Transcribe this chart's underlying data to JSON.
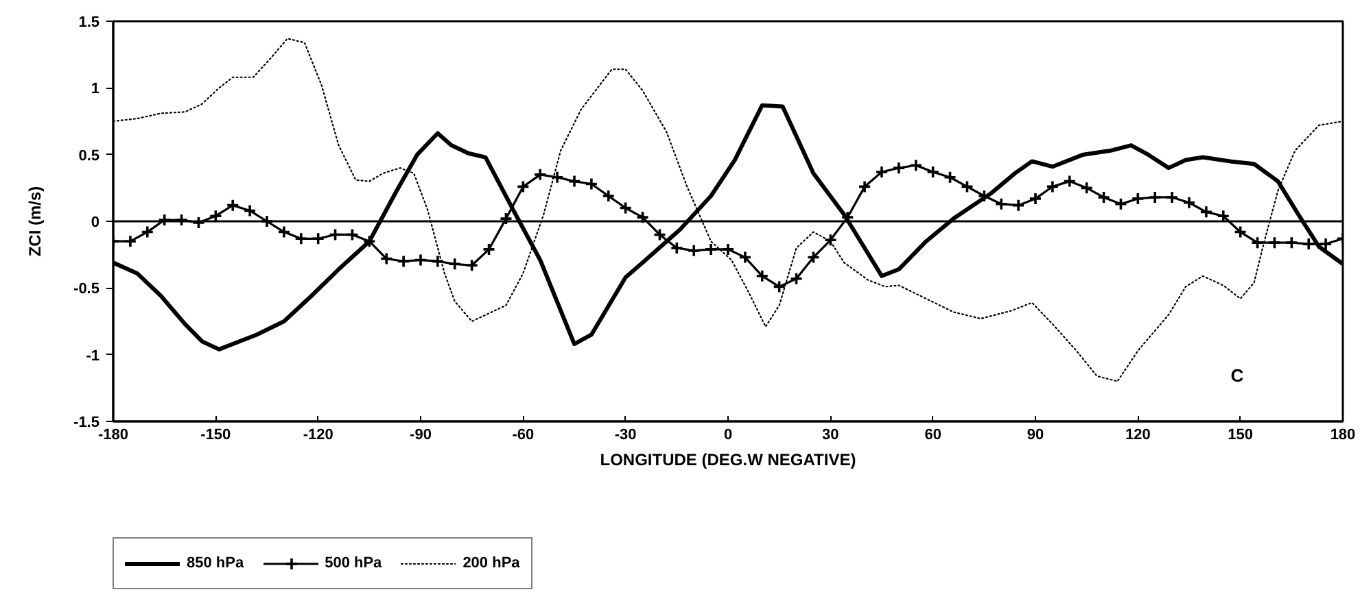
{
  "chart_data": {
    "type": "line",
    "xlabel": "LONGITUDE (DEG.W NEGATIVE)",
    "ylabel": "ZCI (m/s)",
    "xlim": [
      -180,
      180
    ],
    "ylim": [
      -1.5,
      1.5
    ],
    "xticks": [
      -180,
      -150,
      -120,
      -90,
      -60,
      -30,
      0,
      30,
      60,
      90,
      120,
      150,
      180
    ],
    "yticks": [
      -1.5,
      -1,
      -0.5,
      0,
      0.5,
      1,
      1.5
    ],
    "legend": "bottom left",
    "ref_lines": [
      {
        "axis": "y",
        "value": 0,
        "color": "#000000"
      }
    ],
    "annotations": [
      "C"
    ],
    "series": [
      {
        "name": "850 hPa",
        "color": "#000000",
        "line_style": "solid",
        "marker": "none",
        "x": [
          -180,
          -173,
          -166,
          -159,
          -154,
          -149,
          -138,
          -130,
          -122,
          -114,
          -105,
          -97,
          -91,
          -85,
          -81,
          -76,
          -71,
          -63,
          -55,
          -45,
          -40,
          -30,
          -25,
          -14,
          -5,
          2,
          10,
          16,
          25,
          34,
          45,
          50,
          58,
          66,
          77,
          84,
          89,
          95,
          104,
          112,
          118,
          123,
          129,
          134,
          139,
          147,
          154,
          161,
          167,
          173,
          180
        ],
        "values": [
          -0.31,
          -0.39,
          -0.56,
          -0.77,
          -0.9,
          -0.96,
          -0.85,
          -0.75,
          -0.56,
          -0.36,
          -0.15,
          0.23,
          0.5,
          0.66,
          0.57,
          0.51,
          0.48,
          0.09,
          -0.29,
          -0.92,
          -0.85,
          -0.42,
          -0.31,
          -0.06,
          0.19,
          0.46,
          0.87,
          0.86,
          0.36,
          0.05,
          -0.41,
          -0.36,
          -0.15,
          0.02,
          0.21,
          0.36,
          0.45,
          0.41,
          0.5,
          0.53,
          0.57,
          0.5,
          0.4,
          0.46,
          0.48,
          0.45,
          0.43,
          0.3,
          0.05,
          -0.19,
          -0.32
        ]
      },
      {
        "name": "500 hPa",
        "color": "#000000",
        "line_style": "solid",
        "marker": "cross",
        "x": [
          -180,
          -175,
          -170,
          -165,
          -160,
          -155,
          -150,
          -145,
          -140,
          -135,
          -130,
          -125,
          -120,
          -115,
          -110,
          -105,
          -100,
          -95,
          -90,
          -85,
          -80,
          -75,
          -70,
          -65,
          -60,
          -55,
          -50,
          -45,
          -40,
          -35,
          -30,
          -25,
          -20,
          -15,
          -10,
          -5,
          0,
          5,
          10,
          15,
          20,
          25,
          30,
          35,
          40,
          45,
          50,
          55,
          60,
          65,
          70,
          75,
          80,
          85,
          90,
          95,
          100,
          105,
          110,
          115,
          120,
          125,
          130,
          135,
          140,
          145,
          150,
          155,
          160,
          165,
          170,
          175,
          180
        ],
        "values": [
          -0.15,
          -0.15,
          -0.08,
          0.01,
          0.01,
          -0.01,
          0.04,
          0.12,
          0.08,
          0.0,
          -0.08,
          -0.13,
          -0.13,
          -0.1,
          -0.1,
          -0.15,
          -0.28,
          -0.3,
          -0.29,
          -0.3,
          -0.32,
          -0.33,
          -0.21,
          0.02,
          0.26,
          0.35,
          0.33,
          0.3,
          0.28,
          0.19,
          0.1,
          0.03,
          -0.1,
          -0.2,
          -0.22,
          -0.21,
          -0.21,
          -0.27,
          -0.41,
          -0.49,
          -0.43,
          -0.27,
          -0.14,
          0.03,
          0.26,
          0.37,
          0.4,
          0.42,
          0.37,
          0.33,
          0.26,
          0.19,
          0.13,
          0.12,
          0.17,
          0.26,
          0.3,
          0.25,
          0.18,
          0.13,
          0.17,
          0.18,
          0.18,
          0.14,
          0.07,
          0.04,
          -0.08,
          -0.16,
          -0.16,
          -0.16,
          -0.17,
          -0.17,
          -0.13
        ]
      },
      {
        "name": "200 hPa",
        "color": "#000000",
        "line_style": "dotted",
        "marker": "none",
        "x": [
          -180,
          -173,
          -166,
          -159,
          -154,
          -149,
          -145,
          -139,
          -134,
          -129,
          -124,
          -119,
          -114,
          -109,
          -105,
          -101,
          -96,
          -92,
          -88,
          -83,
          -80,
          -75,
          -65,
          -60,
          -54,
          -49,
          -43,
          -34,
          -30,
          -25,
          -18,
          -12,
          -5,
          1,
          6,
          11,
          15,
          20,
          25,
          30,
          34,
          41,
          46,
          50,
          58,
          66,
          74,
          83,
          89,
          95,
          102,
          108,
          114,
          120,
          129,
          134,
          139,
          145,
          150,
          154,
          157,
          161,
          166,
          173,
          180
        ],
        "values": [
          0.75,
          0.77,
          0.81,
          0.82,
          0.88,
          1.0,
          1.08,
          1.08,
          1.22,
          1.37,
          1.34,
          1.02,
          0.57,
          0.31,
          0.3,
          0.36,
          0.4,
          0.36,
          0.09,
          -0.39,
          -0.6,
          -0.75,
          -0.63,
          -0.39,
          0.05,
          0.53,
          0.84,
          1.14,
          1.14,
          0.98,
          0.67,
          0.26,
          -0.15,
          -0.29,
          -0.53,
          -0.79,
          -0.63,
          -0.2,
          -0.08,
          -0.15,
          -0.31,
          -0.44,
          -0.49,
          -0.48,
          -0.58,
          -0.68,
          -0.73,
          -0.67,
          -0.61,
          -0.77,
          -0.97,
          -1.16,
          -1.2,
          -0.97,
          -0.7,
          -0.49,
          -0.41,
          -0.48,
          -0.58,
          -0.46,
          -0.15,
          0.23,
          0.53,
          0.72,
          0.75
        ]
      }
    ]
  }
}
